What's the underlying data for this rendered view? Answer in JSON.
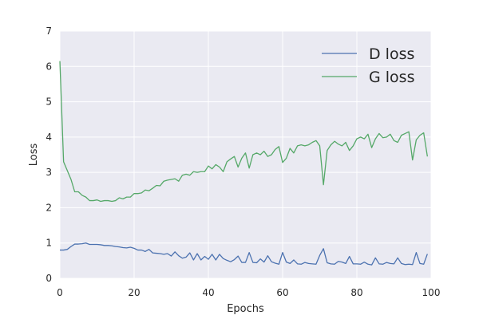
{
  "chart_data": {
    "type": "line",
    "title": "",
    "xlabel": "Epochs",
    "ylabel": "Loss",
    "xlim": [
      0,
      100
    ],
    "ylim": [
      0,
      7
    ],
    "xticks": [
      0,
      20,
      40,
      60,
      80,
      100
    ],
    "yticks": [
      0,
      1,
      2,
      3,
      4,
      5,
      6,
      7
    ],
    "grid": true,
    "background": "#eaeaf2",
    "legend_position": "top-right",
    "x": [
      0,
      1,
      2,
      3,
      4,
      5,
      6,
      7,
      8,
      9,
      10,
      11,
      12,
      13,
      14,
      15,
      16,
      17,
      18,
      19,
      20,
      21,
      22,
      23,
      24,
      25,
      26,
      27,
      28,
      29,
      30,
      31,
      32,
      33,
      34,
      35,
      36,
      37,
      38,
      39,
      40,
      41,
      42,
      43,
      44,
      45,
      46,
      47,
      48,
      49,
      50,
      51,
      52,
      53,
      54,
      55,
      56,
      57,
      58,
      59,
      60,
      61,
      62,
      63,
      64,
      65,
      66,
      67,
      68,
      69,
      70,
      71,
      72,
      73,
      74,
      75,
      76,
      77,
      78,
      79,
      80,
      81,
      82,
      83,
      84,
      85,
      86,
      87,
      88,
      89,
      90,
      91,
      92,
      93,
      94,
      95,
      96,
      97,
      98,
      99
    ],
    "series": [
      {
        "name": "D loss",
        "color": "#4c72b0",
        "values": [
          0.8,
          0.8,
          0.82,
          0.9,
          0.97,
          0.97,
          0.98,
          1.0,
          0.96,
          0.96,
          0.96,
          0.95,
          0.93,
          0.93,
          0.92,
          0.9,
          0.89,
          0.87,
          0.86,
          0.88,
          0.85,
          0.8,
          0.8,
          0.76,
          0.82,
          0.72,
          0.71,
          0.7,
          0.68,
          0.7,
          0.63,
          0.75,
          0.64,
          0.57,
          0.6,
          0.72,
          0.52,
          0.7,
          0.52,
          0.62,
          0.54,
          0.68,
          0.52,
          0.68,
          0.56,
          0.51,
          0.47,
          0.53,
          0.63,
          0.45,
          0.45,
          0.73,
          0.45,
          0.44,
          0.55,
          0.46,
          0.64,
          0.47,
          0.43,
          0.4,
          0.73,
          0.46,
          0.42,
          0.52,
          0.41,
          0.4,
          0.45,
          0.42,
          0.41,
          0.4,
          0.65,
          0.84,
          0.44,
          0.41,
          0.4,
          0.48,
          0.46,
          0.42,
          0.62,
          0.41,
          0.41,
          0.4,
          0.46,
          0.4,
          0.38,
          0.58,
          0.41,
          0.4,
          0.45,
          0.42,
          0.41,
          0.58,
          0.42,
          0.39,
          0.4,
          0.39,
          0.73,
          0.42,
          0.4,
          0.69
        ]
      },
      {
        "name": "G loss",
        "color": "#55a868",
        "values": [
          6.15,
          3.3,
          3.05,
          2.8,
          2.45,
          2.45,
          2.35,
          2.3,
          2.2,
          2.2,
          2.22,
          2.18,
          2.2,
          2.2,
          2.18,
          2.2,
          2.28,
          2.25,
          2.3,
          2.3,
          2.4,
          2.4,
          2.42,
          2.5,
          2.48,
          2.55,
          2.63,
          2.62,
          2.75,
          2.78,
          2.8,
          2.82,
          2.75,
          2.92,
          2.95,
          2.92,
          3.02,
          3.0,
          3.02,
          3.02,
          3.18,
          3.1,
          3.22,
          3.15,
          3.02,
          3.3,
          3.38,
          3.45,
          3.15,
          3.4,
          3.55,
          3.12,
          3.5,
          3.55,
          3.5,
          3.6,
          3.45,
          3.5,
          3.65,
          3.73,
          3.28,
          3.4,
          3.68,
          3.55,
          3.75,
          3.78,
          3.75,
          3.78,
          3.85,
          3.9,
          3.75,
          2.65,
          3.62,
          3.78,
          3.88,
          3.8,
          3.75,
          3.85,
          3.62,
          3.75,
          3.95,
          4.0,
          3.95,
          4.08,
          3.7,
          3.95,
          4.1,
          3.98,
          4.0,
          4.08,
          3.9,
          3.85,
          4.05,
          4.1,
          4.15,
          3.35,
          3.92,
          4.05,
          4.12,
          3.45
        ]
      }
    ]
  }
}
